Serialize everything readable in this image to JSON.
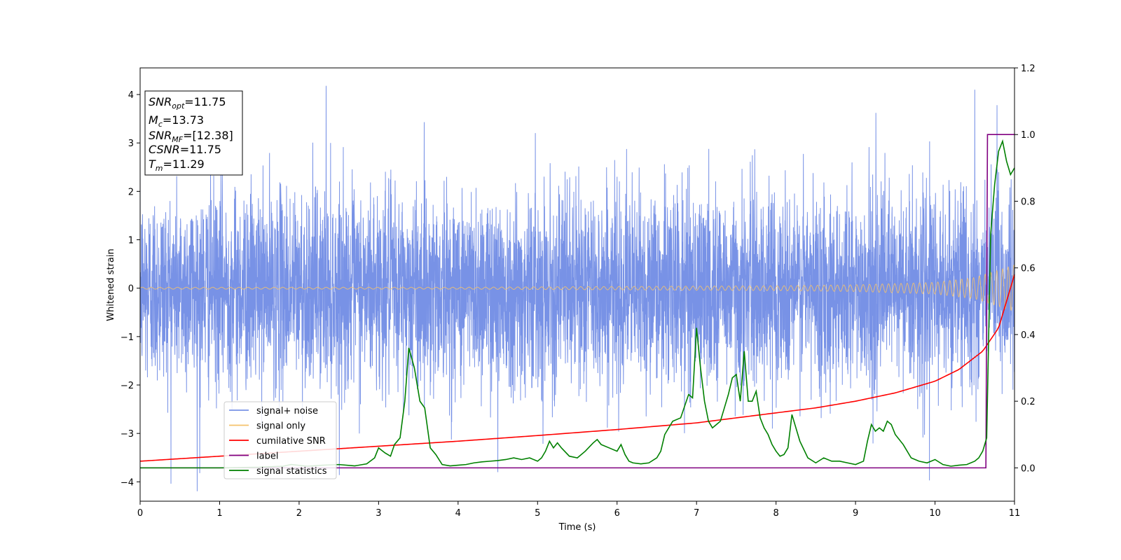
{
  "chart_data": {
    "type": "line",
    "title": "",
    "xlabel": "Time (s)",
    "ylabel": "Whitened strain",
    "xlim": [
      0,
      11
    ],
    "ylim": [
      -4.4,
      4.55
    ],
    "y2lim": [
      -0.1,
      1.2
    ],
    "xticks": [
      "0",
      "1",
      "2",
      "3",
      "4",
      "5",
      "6",
      "7",
      "8",
      "9",
      "10",
      "11"
    ],
    "yticks": [
      "4",
      "3",
      "2",
      "1",
      "0",
      "−1",
      "−2",
      "−3",
      "−4"
    ],
    "y2ticks": [
      "1.2",
      "1.0",
      "0.8",
      "0.6",
      "0.4",
      "0.2",
      "0.0"
    ],
    "grid": false,
    "legend": {
      "placement": "lower-left",
      "entries": [
        "signal+ noise",
        "signal only",
        "cumilative SNR",
        "label",
        "signal statistics"
      ]
    },
    "annotation": [
      {
        "base": "SNR",
        "sub": "opt",
        "value": "=11.75"
      },
      {
        "base": "M",
        "sub": "c",
        "value": "=13.73"
      },
      {
        "base": "SNR",
        "sub": "MF",
        "value": "=[12.38]"
      },
      {
        "base": "CSNR",
        "sub": "",
        "value": "=11.75"
      },
      {
        "base": "T",
        "sub": "m",
        "value": "=11.29"
      }
    ],
    "series": [
      {
        "name": "signal+ noise",
        "axis": "left",
        "color": "#7892e6",
        "noise_std": 1.0,
        "notable_peaks": [
          [
            2.34,
            4.18
          ],
          [
            0.75,
            -3.82
          ],
          [
            9.93,
            -3.97
          ],
          [
            4.5,
            -3.8
          ],
          [
            10.78,
            3.78
          ],
          [
            10.5,
            4.1
          ]
        ]
      },
      {
        "name": "signal only",
        "axis": "left",
        "color": "#f5c26b",
        "amplitude_x": [
          0,
          4,
          8,
          9,
          10,
          10.5,
          11
        ],
        "amplitude_y": [
          0.02,
          0.02,
          0.05,
          0.07,
          0.12,
          0.22,
          0.48
        ]
      },
      {
        "name": "cumilative SNR",
        "axis": "right",
        "color": "#ff0000",
        "x": [
          0,
          1,
          2,
          3,
          4,
          5,
          6,
          7,
          8,
          8.5,
          9,
          9.5,
          10,
          10.3,
          10.6,
          10.8,
          11
        ],
        "y": [
          0.02,
          0.035,
          0.05,
          0.065,
          0.08,
          0.097,
          0.115,
          0.135,
          0.165,
          0.18,
          0.2,
          0.225,
          0.26,
          0.295,
          0.35,
          0.42,
          0.58
        ]
      },
      {
        "name": "label",
        "axis": "right",
        "color": "#800080",
        "x": [
          0,
          10.64,
          10.66,
          11
        ],
        "y": [
          0.0,
          0.0,
          1.0,
          1.0
        ]
      },
      {
        "name": "signal statistics",
        "axis": "right",
        "color": "#008000",
        "x": [
          0,
          0.5,
          1,
          1.5,
          1.8,
          1.9,
          2.1,
          2.3,
          2.5,
          2.7,
          2.85,
          2.95,
          3.0,
          3.08,
          3.15,
          3.2,
          3.27,
          3.33,
          3.38,
          3.45,
          3.52,
          3.58,
          3.65,
          3.72,
          3.8,
          3.9,
          4.0,
          4.1,
          4.2,
          4.3,
          4.4,
          4.5,
          4.6,
          4.7,
          4.8,
          4.9,
          5.0,
          5.05,
          5.1,
          5.15,
          5.2,
          5.25,
          5.3,
          5.4,
          5.5,
          5.6,
          5.7,
          5.75,
          5.8,
          5.9,
          6.0,
          6.05,
          6.1,
          6.15,
          6.2,
          6.3,
          6.4,
          6.5,
          6.55,
          6.6,
          6.7,
          6.8,
          6.9,
          6.95,
          7.0,
          7.05,
          7.1,
          7.15,
          7.2,
          7.25,
          7.3,
          7.35,
          7.4,
          7.45,
          7.5,
          7.55,
          7.6,
          7.65,
          7.7,
          7.75,
          7.8,
          7.85,
          7.9,
          7.95,
          8.0,
          8.05,
          8.1,
          8.15,
          8.2,
          8.3,
          8.4,
          8.5,
          8.6,
          8.7,
          8.8,
          8.9,
          9.0,
          9.1,
          9.15,
          9.2,
          9.25,
          9.3,
          9.35,
          9.4,
          9.45,
          9.5,
          9.6,
          9.7,
          9.8,
          9.9,
          10.0,
          10.1,
          10.2,
          10.3,
          10.4,
          10.5,
          10.55,
          10.6,
          10.65,
          10.7,
          10.75,
          10.8,
          10.85,
          10.9,
          10.95,
          11.0
        ],
        "y": [
          0.0,
          0.0,
          0.0,
          0.002,
          0.005,
          0.01,
          0.005,
          0.008,
          0.01,
          0.006,
          0.012,
          0.03,
          0.06,
          0.045,
          0.035,
          0.07,
          0.09,
          0.2,
          0.36,
          0.3,
          0.2,
          0.18,
          0.06,
          0.04,
          0.01,
          0.006,
          0.008,
          0.01,
          0.015,
          0.018,
          0.02,
          0.022,
          0.025,
          0.03,
          0.025,
          0.03,
          0.02,
          0.03,
          0.05,
          0.08,
          0.06,
          0.075,
          0.06,
          0.035,
          0.03,
          0.05,
          0.075,
          0.085,
          0.07,
          0.06,
          0.05,
          0.07,
          0.04,
          0.02,
          0.015,
          0.012,
          0.015,
          0.03,
          0.05,
          0.1,
          0.14,
          0.15,
          0.22,
          0.21,
          0.42,
          0.3,
          0.2,
          0.14,
          0.12,
          0.13,
          0.14,
          0.18,
          0.22,
          0.27,
          0.28,
          0.2,
          0.35,
          0.2,
          0.2,
          0.23,
          0.15,
          0.12,
          0.1,
          0.07,
          0.05,
          0.035,
          0.04,
          0.06,
          0.16,
          0.08,
          0.03,
          0.015,
          0.03,
          0.02,
          0.02,
          0.015,
          0.01,
          0.02,
          0.08,
          0.13,
          0.11,
          0.12,
          0.11,
          0.14,
          0.13,
          0.1,
          0.07,
          0.03,
          0.02,
          0.015,
          0.025,
          0.01,
          0.005,
          0.008,
          0.01,
          0.02,
          0.03,
          0.05,
          0.09,
          0.7,
          0.85,
          0.95,
          0.98,
          0.92,
          0.88,
          0.9
        ]
      }
    ]
  }
}
